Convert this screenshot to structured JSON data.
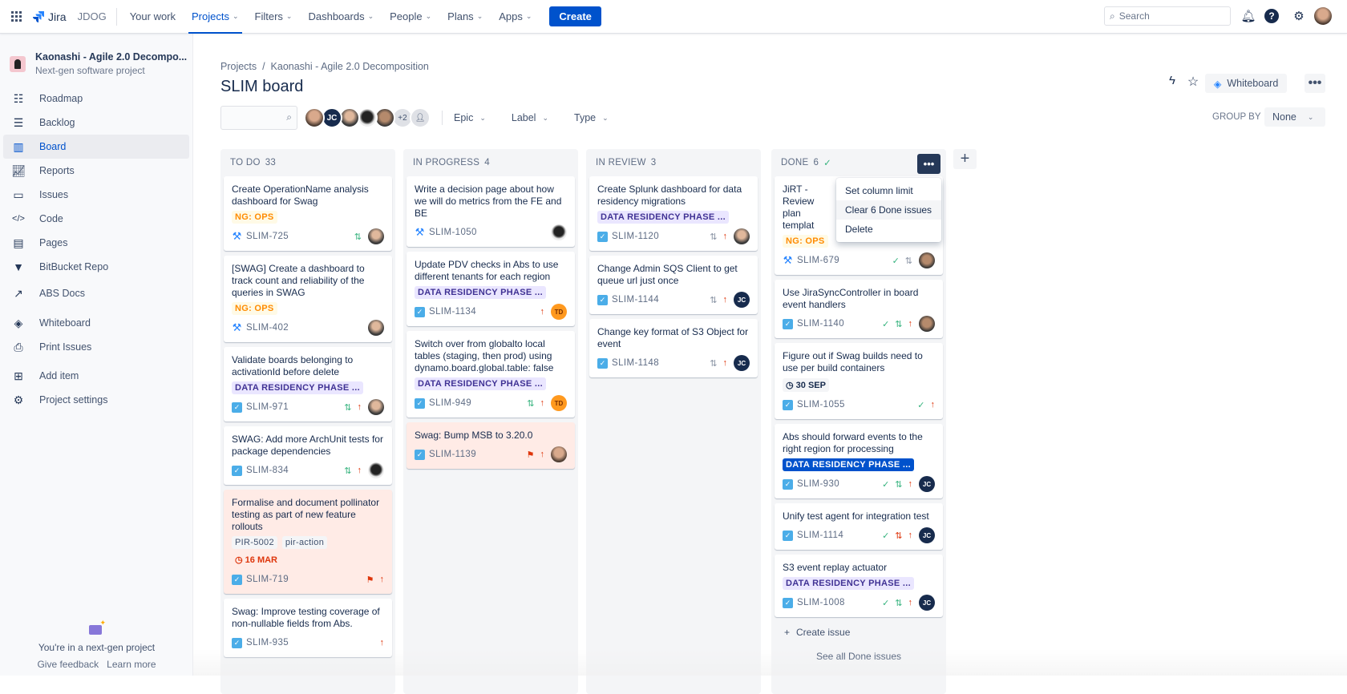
{
  "topnav": {
    "app": "Jira",
    "site": "JDOG",
    "items": [
      {
        "label": "Your work",
        "dropdown": false
      },
      {
        "label": "Projects",
        "dropdown": true,
        "active": true
      },
      {
        "label": "Filters",
        "dropdown": true
      },
      {
        "label": "Dashboards",
        "dropdown": true
      },
      {
        "label": "People",
        "dropdown": true
      },
      {
        "label": "Plans",
        "dropdown": true
      },
      {
        "label": "Apps",
        "dropdown": true
      }
    ],
    "create": "Create",
    "search_placeholder": "Search"
  },
  "sidebar": {
    "project_name": "Kaonashi - Agile 2.0 Decompo...",
    "project_type": "Next-gen software project",
    "items": [
      {
        "label": "Roadmap",
        "icon": "roadmap-icon"
      },
      {
        "label": "Backlog",
        "icon": "backlog-icon"
      },
      {
        "label": "Board",
        "icon": "board-icon",
        "active": true
      },
      {
        "label": "Reports",
        "icon": "reports-icon"
      },
      {
        "label": "Issues",
        "icon": "issues-icon"
      },
      {
        "label": "Code",
        "icon": "code-icon"
      },
      {
        "label": "Pages",
        "icon": "pages-icon"
      },
      {
        "label": "BitBucket Repo",
        "icon": "bitbucket-icon"
      },
      {
        "label": "ABS Docs",
        "icon": "external-link-icon"
      },
      {
        "label": "Whiteboard",
        "icon": "whiteboard-icon"
      },
      {
        "label": "Print Issues",
        "icon": "printer-icon"
      },
      {
        "label": "Add item",
        "icon": "add-item-icon"
      },
      {
        "label": "Project settings",
        "icon": "gear-icon"
      }
    ],
    "footer": {
      "text": "You're in a next-gen project",
      "feedback": "Give feedback",
      "learn": "Learn more"
    }
  },
  "header": {
    "breadcrumb": [
      "Projects",
      "Kaonashi - Agile 2.0 Decomposition"
    ],
    "title": "SLIM board",
    "whiteboard": "Whiteboard"
  },
  "filters": {
    "avatars": [
      "photo",
      "JC",
      "photo",
      "photo",
      "photo"
    ],
    "more": "+2",
    "epic": "Epic",
    "label": "Label",
    "type": "Type",
    "group_by": "GROUP BY",
    "group_value": "None"
  },
  "colors": {
    "accent": "#0052cc",
    "flagged": "#ffebe6",
    "label_ops": "#ff8b00",
    "label_drp": "#403294"
  },
  "columns": [
    {
      "name": "TO DO",
      "count": "33",
      "cards": [
        {
          "title": "Create OperationName analysis dashboard for Swag",
          "labels": [
            {
              "text": "NG: OPS",
              "style": "ops"
            }
          ],
          "key": "SLIM-725",
          "type": "tool",
          "pr": "green",
          "avatar": "p2"
        },
        {
          "title": "[SWAG] Create a dashboard to track count and reliability of the queries in SWAG",
          "labels": [
            {
              "text": "NG: OPS",
              "style": "ops"
            }
          ],
          "key": "SLIM-402",
          "type": "tool",
          "avatar": "p2"
        },
        {
          "title": "Validate boards belonging to activationId before delete",
          "labels": [
            {
              "text": "DATA RESIDENCY PHASE ...",
              "style": "drp"
            }
          ],
          "key": "SLIM-971",
          "type": "task",
          "pr": "green",
          "priority": "high",
          "avatar": "p2"
        },
        {
          "title": "SWAG: Add more ArchUnit tests for package dependencies",
          "key": "SLIM-834",
          "type": "task",
          "pr": "green",
          "priority": "high",
          "avatar": "p3"
        },
        {
          "title": "Formalise and document pollinator testing as part of new feature rollouts",
          "flagged": true,
          "labels": [
            {
              "text": "PIR-5002",
              "style": "gray"
            },
            {
              "text": "pir-action",
              "style": "gray"
            }
          ],
          "date": {
            "text": "16 MAR",
            "style": "red"
          },
          "key": "SLIM-719",
          "type": "task",
          "priority": "high"
        },
        {
          "title": "Swag: Improve testing coverage of non-nullable fields from Abs.",
          "key": "SLIM-935",
          "type": "task",
          "priority": "high"
        }
      ]
    },
    {
      "name": "IN PROGRESS",
      "count": "4",
      "cards": [
        {
          "title": "Write a decision page about how we will do metrics from the FE and BE",
          "key": "SLIM-1050",
          "type": "tool",
          "avatar": "p3"
        },
        {
          "title": "Update PDV checks in Abs to use different tenants for each region",
          "labels": [
            {
              "text": "DATA RESIDENCY PHASE ...",
              "style": "drp"
            }
          ],
          "key": "SLIM-1134",
          "type": "task",
          "priority": "high",
          "avatar": "TD"
        },
        {
          "title": "Switch over from globalto local tables (staging, then prod) using dynamo.board.global.table: false",
          "labels": [
            {
              "text": "DATA RESIDENCY PHASE ...",
              "style": "drp"
            }
          ],
          "key": "SLIM-949",
          "type": "task",
          "pr": "green",
          "priority": "high",
          "avatar": "TD"
        },
        {
          "title": "Swag: Bump MSB to 3.20.0",
          "flagged": true,
          "key": "SLIM-1139",
          "type": "task",
          "priority": "high",
          "avatar": "p1"
        }
      ]
    },
    {
      "name": "IN REVIEW",
      "count": "3",
      "cards": [
        {
          "title": "Create Splunk dashboard for data residency migrations",
          "labels": [
            {
              "text": "DATA RESIDENCY PHASE ...",
              "style": "drp"
            }
          ],
          "key": "SLIM-1120",
          "type": "task",
          "pr": "gray",
          "priority": "high",
          "avatar": "p2"
        },
        {
          "title": "Change Admin SQS Client to get queue url just once",
          "key": "SLIM-1144",
          "type": "task",
          "pr": "gray",
          "priority": "high",
          "avatar": "JC"
        },
        {
          "title": "Change key format of S3 Object for event",
          "key": "SLIM-1148",
          "type": "task",
          "pr": "gray",
          "priority": "high",
          "avatar": "JC"
        }
      ]
    },
    {
      "name": "DONE",
      "count": "6",
      "done": true,
      "cards": [
        {
          "title": "JiRT - Review plan templat",
          "labels": [
            {
              "text": "NG: OPS",
              "style": "ops"
            }
          ],
          "key": "SLIM-679",
          "type": "tool",
          "check": true,
          "pr": "gray",
          "avatar": "p4"
        },
        {
          "title": "Use JiraSyncController in board event handlers",
          "key": "SLIM-1140",
          "type": "task",
          "check": true,
          "pr": "green",
          "priority": "high",
          "avatar": "p4"
        },
        {
          "title": "Figure out if Swag builds need to use per build containers",
          "date": {
            "text": "30 SEP",
            "style": "gray"
          },
          "key": "SLIM-1055",
          "type": "task",
          "check": true,
          "priority": "high"
        },
        {
          "title": "Abs should forward events to the right region for processing",
          "labels": [
            {
              "text": "DATA RESIDENCY PHASE ...",
              "style": "drpsel"
            }
          ],
          "key": "SLIM-930",
          "type": "task",
          "check": true,
          "pr": "green",
          "priority": "high",
          "avatar": "JC"
        },
        {
          "title": "Unify test agent for integration test",
          "key": "SLIM-1114",
          "type": "task",
          "check": true,
          "pr": "red",
          "priority": "high",
          "avatar": "JC"
        },
        {
          "title": "S3 event replay actuator",
          "labels": [
            {
              "text": "DATA RESIDENCY PHASE ...",
              "style": "drp"
            }
          ],
          "key": "SLIM-1008",
          "type": "task",
          "check": true,
          "pr": "green",
          "priority": "high",
          "avatar": "JC"
        }
      ],
      "create_issue": "Create issue",
      "see_all": "See all Done issues"
    }
  ],
  "column_menu": {
    "items": [
      "Set column limit",
      "Clear 6 Done issues",
      "Delete"
    ],
    "hovered": 1
  }
}
